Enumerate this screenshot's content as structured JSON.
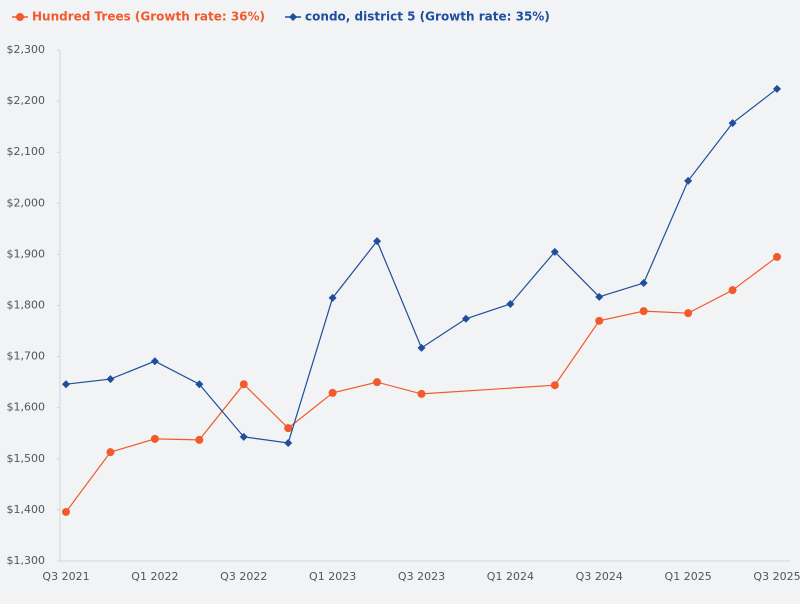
{
  "chart_data": {
    "type": "line",
    "categories": [
      "Q3 2021",
      null,
      "Q1 2022",
      null,
      "Q3 2022",
      null,
      "Q1 2023",
      null,
      "Q3 2023",
      null,
      "Q1 2024",
      null,
      "Q3 2024",
      null,
      "Q1 2025",
      null,
      "Q3 2025"
    ],
    "series": [
      {
        "name": "Hundred Trees (Growth rate: 36%)",
        "color": "#f25a2c",
        "marker": "circle",
        "values": [
          1396,
          1513,
          1539,
          1537,
          1646,
          1560,
          1629,
          1650,
          1627,
          null,
          null,
          1644,
          1770,
          1789,
          1785,
          1830,
          1895
        ]
      },
      {
        "name": "condo, district 5 (Growth rate: 35%)",
        "color": "#1f4e9c",
        "marker": "diamond",
        "values": [
          1646,
          1656,
          1691,
          1646,
          1543,
          1531,
          1815,
          1926,
          1717,
          1774,
          1803,
          1905,
          1817,
          1844,
          2044,
          2157,
          2224
        ]
      }
    ],
    "ylim": [
      1300,
      2300
    ],
    "yticks": [
      {
        "value": 1300,
        "label": "$1,300"
      },
      {
        "value": 1400,
        "label": "$1,400"
      },
      {
        "value": 1500,
        "label": "$1,500"
      },
      {
        "value": 1600,
        "label": "$1,600"
      },
      {
        "value": 1700,
        "label": "$1,700"
      },
      {
        "value": 1800,
        "label": "$1,800"
      },
      {
        "value": 1900,
        "label": "$1,900"
      },
      {
        "value": 2000,
        "label": "$2,000"
      },
      {
        "value": 2100,
        "label": "$2,100"
      },
      {
        "value": 2200,
        "label": "$2,200"
      },
      {
        "value": 2300,
        "label": "$2,300"
      }
    ],
    "grid": false,
    "legend": "top-left"
  }
}
